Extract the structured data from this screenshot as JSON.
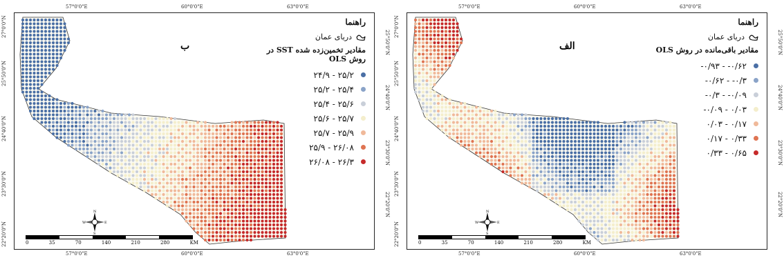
{
  "panels": [
    {
      "id": "b",
      "label": "ب",
      "legend_title": "راهنما",
      "sea_label": "دریای عمان",
      "subtitle": "مقادیر تخمین‌زده شده SST در روش OLS",
      "classes": [
        {
          "label": "۲۴/۹ - ۲۵/۲",
          "color": "#4a6fa5"
        },
        {
          "label": "۲۵/۲ - ۲۵/۴",
          "color": "#8aa3c8"
        },
        {
          "label": "۲۵/۴ - ۲۵/۶",
          "color": "#c9cfd9"
        },
        {
          "label": "۲۵/۶ - ۲۵/۷",
          "color": "#f4eecc"
        },
        {
          "label": "۲۵/۷ - ۲۵/۹",
          "color": "#f0b99a"
        },
        {
          "label": "۲۵/۹ - ۲۶/۰۸",
          "color": "#df7452"
        },
        {
          "label": "۲۶/۰۸ - ۲۶/۳",
          "color": "#c62a2a"
        }
      ]
    },
    {
      "id": "alef",
      "label": "الف",
      "legend_title": "راهنما",
      "sea_label": "دریای عمان",
      "subtitle": "مقادیر باقی‌مانده در روش OLS",
      "classes": [
        {
          "label": "-۰/۹۳ - -۰/۶۲",
          "color": "#4a6fa5"
        },
        {
          "label": "-۰/۶۲ - -۰/۳",
          "color": "#8aa3c8"
        },
        {
          "label": "-۰/۳ - -۰/۰۹",
          "color": "#c9cfd9"
        },
        {
          "label": "-۰/۰۹ - ۰/۰۳",
          "color": "#f4eecc"
        },
        {
          "label": "۰/۰۳ - ۰/۱۷",
          "color": "#f0b99a"
        },
        {
          "label": "۰/۱۷ - ۰/۳۳",
          "color": "#df7452"
        },
        {
          "label": "۰/۳۳ - ۰/۶۵",
          "color": "#c62a2a"
        }
      ]
    }
  ],
  "axes": {
    "top": [
      "57°0'0\"E",
      "60°0'0\"E",
      "63°0'0\"E"
    ],
    "left": [
      "27°0'0\"N",
      "25°50'0\"N",
      "24°40'0\"N",
      "23°30'0\"N",
      "22°20'0\"N"
    ],
    "right": [
      "25°50'0\"N",
      "24°40'0\"N",
      "23°30'0\"N",
      "22°20'0\"N"
    ]
  },
  "scale": {
    "labels": [
      "0",
      "35",
      "70",
      "140",
      "210",
      "280"
    ],
    "unit": "KM"
  },
  "compass": {
    "n": "N",
    "s": "S",
    "e": "E",
    "w": "W"
  }
}
